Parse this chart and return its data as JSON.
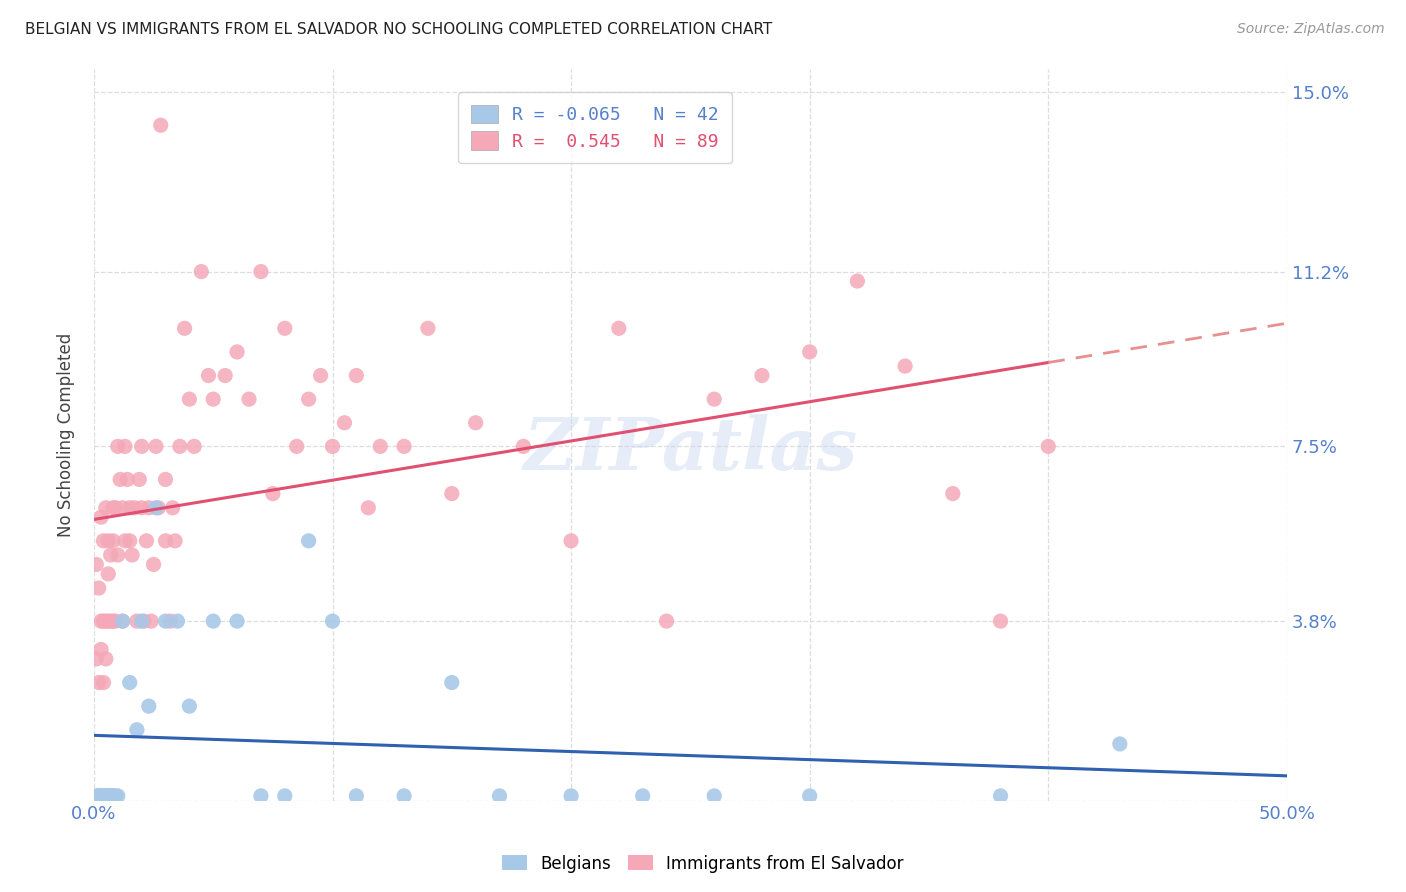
{
  "title": "BELGIAN VS IMMIGRANTS FROM EL SALVADOR NO SCHOOLING COMPLETED CORRELATION CHART",
  "source": "Source: ZipAtlas.com",
  "ylabel": "No Schooling Completed",
  "xlim": [
    0.0,
    0.5
  ],
  "ylim": [
    0.0,
    0.155
  ],
  "yticks": [
    0.0,
    0.038,
    0.075,
    0.112,
    0.15
  ],
  "ytick_labels": [
    "",
    "3.8%",
    "7.5%",
    "11.2%",
    "15.0%"
  ],
  "xticks": [
    0.0,
    0.1,
    0.2,
    0.3,
    0.4,
    0.5
  ],
  "xtick_labels": [
    "0.0%",
    "",
    "",
    "",
    "",
    "50.0%"
  ],
  "belgian_R": -0.065,
  "belgian_N": 42,
  "salvador_R": 0.545,
  "salvador_N": 89,
  "belgian_color": "#a8c8e8",
  "salvador_color": "#f4a8b8",
  "belgian_line_color": "#3060b0",
  "salvador_line_color": "#e05070",
  "trendline_extend_color": "#e89090",
  "background_color": "#ffffff",
  "watermark": "ZIPatlas",
  "tick_color": "#5580cc",
  "grid_color": "#dddddd",
  "title_color": "#222222",
  "source_color": "#999999"
}
